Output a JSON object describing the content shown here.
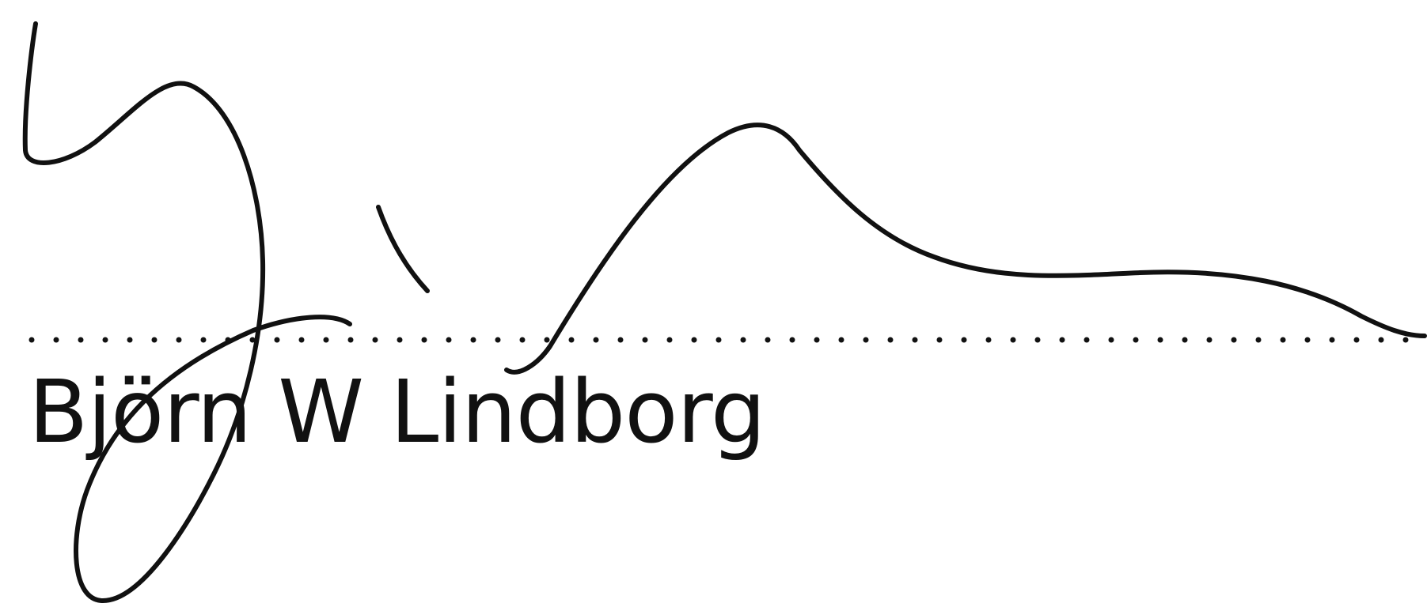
{
  "signature_block": {
    "printed_name": "Björn W Lindborg",
    "signature_description": "handwritten signature",
    "ink_color": "#111111"
  }
}
